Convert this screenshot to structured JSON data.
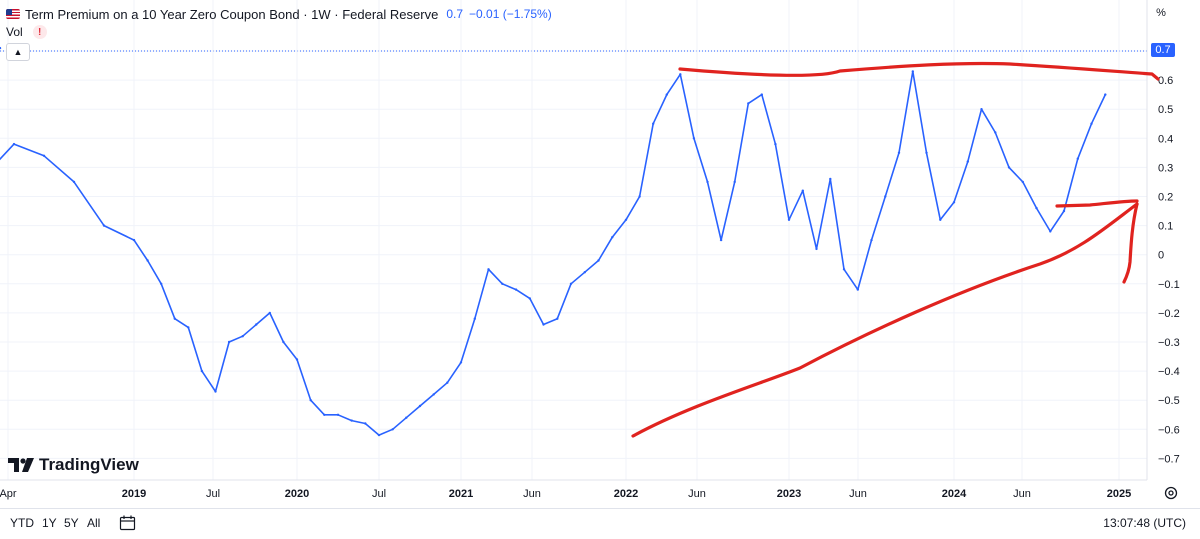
{
  "header": {
    "title": "Term Premium on a 10 Year Zero Coupon Bond · 1W · Federal Reserve",
    "last_value": "0.7",
    "change": "−0.01 (−1.75%)",
    "vol_label": "Vol",
    "alert_glyph": "!",
    "unit_label": "%"
  },
  "logo": {
    "text": "TradingView"
  },
  "toolbar": {
    "ranges": [
      "YTD",
      "1Y",
      "5Y",
      "All"
    ],
    "clock": "13:07:48 (UTC)"
  },
  "colors": {
    "line": "#2962ff",
    "annotation": "#e0231f",
    "grid": "#f0f3fa",
    "axis_text": "#131722"
  },
  "icons": [
    "flag-icon",
    "alert-icon",
    "chevron-up-icon",
    "tradingview-logo-icon",
    "date-range-icon",
    "gear-icon"
  ],
  "chart_data": {
    "type": "line",
    "title": "Term Premium on a 10 Year Zero Coupon Bond",
    "series": [
      {
        "values": [
          [
            "2018-04",
            0.3
          ],
          [
            "2018-05",
            0.33
          ],
          [
            "2018-06",
            0.28
          ],
          [
            "2018-07",
            0.3
          ],
          [
            "2018-08",
            0.27
          ],
          [
            "2018-09",
            0.38
          ],
          [
            "2018-10",
            0.34
          ],
          [
            "2018-11",
            0.25
          ],
          [
            "2018-12",
            0.1
          ],
          [
            "2019-01",
            0.05
          ],
          [
            "2019-02",
            -0.02
          ],
          [
            "2019-03",
            -0.1
          ],
          [
            "2019-04",
            -0.22
          ],
          [
            "2019-05",
            -0.25
          ],
          [
            "2019-06",
            -0.4
          ],
          [
            "2019-07",
            -0.47
          ],
          [
            "2019-08",
            -0.3
          ],
          [
            "2019-09",
            -0.28
          ],
          [
            "2019-10",
            -0.24
          ],
          [
            "2019-11",
            -0.2
          ],
          [
            "2019-12",
            -0.3
          ],
          [
            "2020-01",
            -0.36
          ],
          [
            "2020-02",
            -0.5
          ],
          [
            "2020-03",
            -0.55
          ],
          [
            "2020-04",
            -0.55
          ],
          [
            "2020-05",
            -0.57
          ],
          [
            "2020-06",
            -0.58
          ],
          [
            "2020-07",
            -0.62
          ],
          [
            "2020-08",
            -0.6
          ],
          [
            "2020-09",
            -0.56
          ],
          [
            "2020-10",
            -0.52
          ],
          [
            "2020-11",
            -0.48
          ],
          [
            "2020-12",
            -0.44
          ],
          [
            "2021-01",
            -0.37
          ],
          [
            "2021-02",
            -0.22
          ],
          [
            "2021-03",
            -0.05
          ],
          [
            "2021-04",
            -0.1
          ],
          [
            "2021-05",
            -0.12
          ],
          [
            "2021-06",
            -0.15
          ],
          [
            "2021-07",
            -0.24
          ],
          [
            "2021-08",
            -0.22
          ],
          [
            "2021-09",
            -0.1
          ],
          [
            "2021-10",
            -0.06
          ],
          [
            "2021-11",
            -0.02
          ],
          [
            "2021-12",
            0.06
          ],
          [
            "2022-01",
            0.12
          ],
          [
            "2022-02",
            0.2
          ],
          [
            "2022-03",
            0.45
          ],
          [
            "2022-04",
            0.55
          ],
          [
            "2022-05",
            0.62
          ],
          [
            "2022-06",
            0.4
          ],
          [
            "2022-07",
            0.25
          ],
          [
            "2022-08",
            0.05
          ],
          [
            "2022-09",
            0.25
          ],
          [
            "2022-10",
            0.52
          ],
          [
            "2022-11",
            0.55
          ],
          [
            "2022-12",
            0.38
          ],
          [
            "2023-01",
            0.12
          ],
          [
            "2023-02",
            0.22
          ],
          [
            "2023-03",
            0.02
          ],
          [
            "2023-04",
            0.26
          ],
          [
            "2023-05",
            -0.05
          ],
          [
            "2023-06",
            -0.12
          ],
          [
            "2023-07",
            0.05
          ],
          [
            "2023-08",
            0.2
          ],
          [
            "2023-09",
            0.35
          ],
          [
            "2023-10",
            0.63
          ],
          [
            "2023-11",
            0.35
          ],
          [
            "2023-12",
            0.12
          ],
          [
            "2024-01",
            0.18
          ],
          [
            "2024-02",
            0.32
          ],
          [
            "2024-03",
            0.5
          ],
          [
            "2024-04",
            0.42
          ],
          [
            "2024-05",
            0.3
          ],
          [
            "2024-06",
            0.25
          ],
          [
            "2024-07",
            0.16
          ],
          [
            "2024-08",
            0.08
          ],
          [
            "2024-09",
            0.15
          ],
          [
            "2024-10",
            0.33
          ],
          [
            "2024-11",
            0.45
          ],
          [
            "2024-12",
            0.55
          ],
          [
            "2025-01",
            0.71
          ]
        ]
      }
    ],
    "y_ticks": [
      "0.7",
      "0.6",
      "0.5",
      "0.4",
      "0.3",
      "0.2",
      "0.1",
      "0",
      "−0.1",
      "−0.2",
      "−0.3",
      "−0.4",
      "−0.5",
      "−0.6",
      "−0.7"
    ],
    "x_ticks": [
      "Apr",
      "2019",
      "Jul",
      "2020",
      "Jul",
      "2021",
      "Jun",
      "2022",
      "Jun",
      "2023",
      "Jun",
      "2024",
      "Jun",
      "2025"
    ],
    "ylim": [
      -0.75,
      0.75
    ],
    "grid": true,
    "legend": "none"
  }
}
